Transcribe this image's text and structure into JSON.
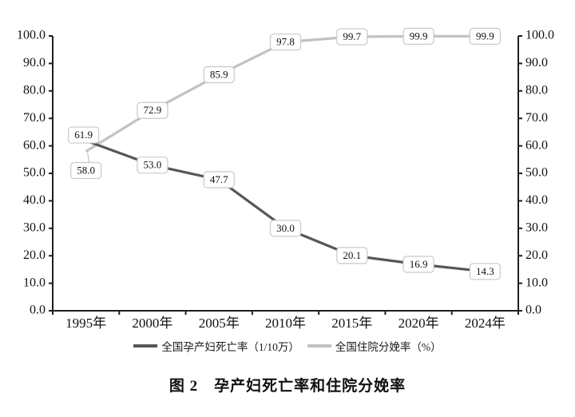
{
  "figure": {
    "caption": "图 2　孕产妇死亡率和住院分娩率"
  },
  "legend": {
    "items": [
      {
        "label": "全国孕产妇死亡率（1/10万）",
        "color": "#575757"
      },
      {
        "label": "全国住院分娩率（%）",
        "color": "#c2c2c2"
      }
    ]
  },
  "chart_data": {
    "type": "line",
    "title": "图 2　孕产妇死亡率和住院分娩率",
    "categories": [
      "1995年",
      "2000年",
      "2005年",
      "2010年",
      "2015年",
      "2020年",
      "2024年"
    ],
    "series": [
      {
        "name": "全国孕产妇死亡率（1/10万）",
        "values": [
          61.9,
          53.0,
          47.7,
          30.0,
          20.1,
          16.9,
          14.3
        ],
        "labels": [
          "61.9",
          "53.0",
          "47.7",
          "30.0",
          "20.1",
          "16.9",
          "14.3"
        ],
        "color": "#575757"
      },
      {
        "name": "全国住院分娩率（%）",
        "values": [
          58.0,
          72.9,
          85.9,
          97.8,
          99.7,
          99.9,
          99.9
        ],
        "labels": [
          "58.0",
          "72.9",
          "85.9",
          "97.8",
          "99.7",
          "99.9",
          "99.9"
        ],
        "color": "#c2c2c2"
      }
    ],
    "xlabel": "",
    "ylabel": "",
    "ylim": [
      0,
      100
    ],
    "yticks": [
      0,
      10,
      20,
      30,
      40,
      50,
      60,
      70,
      80,
      90,
      100
    ],
    "ytick_labels": [
      "0.0",
      "10.0",
      "20.0",
      "30.0",
      "40.0",
      "50.0",
      "60.0",
      "70.0",
      "80.0",
      "90.0",
      "100.0"
    ],
    "dual_y_axis": true,
    "grid": false,
    "legend_position": "bottom",
    "data_labels_visible": true,
    "colors": {
      "axis": "#1f1f1f",
      "label_box_fill": "#ffffff",
      "label_box_border": "#c9c9c9",
      "text": "#111111"
    }
  }
}
